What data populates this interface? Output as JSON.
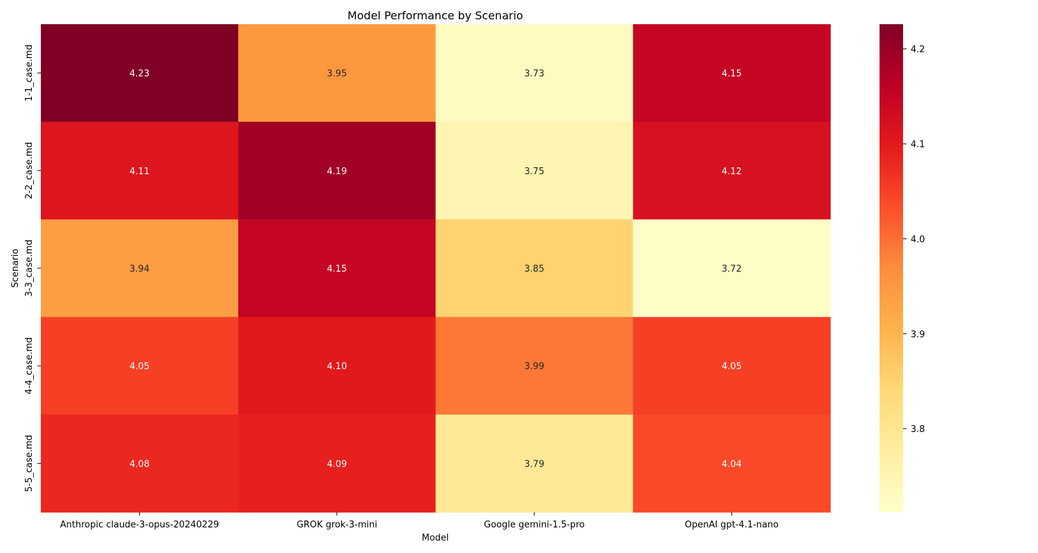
{
  "chart_data": {
    "type": "heatmap",
    "title": "Model Performance by Scenario",
    "xlabel": "Model",
    "ylabel": "Scenario",
    "x_categories": [
      "Anthropic claude-3-opus-20240229",
      "GROK grok-3-mini",
      "Google gemini-1.5-pro",
      "OpenAI gpt-4.1-nano"
    ],
    "y_categories": [
      "1-1_case.md",
      "2-2_case.md",
      "3-3_case.md",
      "4-4_case.md",
      "5-5_case.md"
    ],
    "values": [
      [
        4.23,
        3.95,
        3.73,
        4.15
      ],
      [
        4.11,
        4.19,
        3.75,
        4.12
      ],
      [
        3.94,
        4.15,
        3.85,
        3.72
      ],
      [
        4.05,
        4.1,
        3.99,
        4.05
      ],
      [
        4.08,
        4.09,
        3.79,
        4.04
      ]
    ],
    "value_labels": [
      [
        "4.23",
        "3.95",
        "3.73",
        "4.15"
      ],
      [
        "4.11",
        "4.19",
        "3.75",
        "4.12"
      ],
      [
        "3.94",
        "4.15",
        "3.85",
        "3.72"
      ],
      [
        "4.05",
        "4.10",
        "3.99",
        "4.05"
      ],
      [
        "4.08",
        "4.09",
        "3.79",
        "4.04"
      ]
    ],
    "colorbar": {
      "colormap": "YlOrRd",
      "vmin": 3.712,
      "vmax": 4.226,
      "ticks": [
        3.8,
        3.9,
        4.0,
        4.1,
        4.2
      ],
      "tick_labels": [
        "3.8",
        "3.9",
        "4.0",
        "4.1",
        "4.2"
      ]
    }
  }
}
